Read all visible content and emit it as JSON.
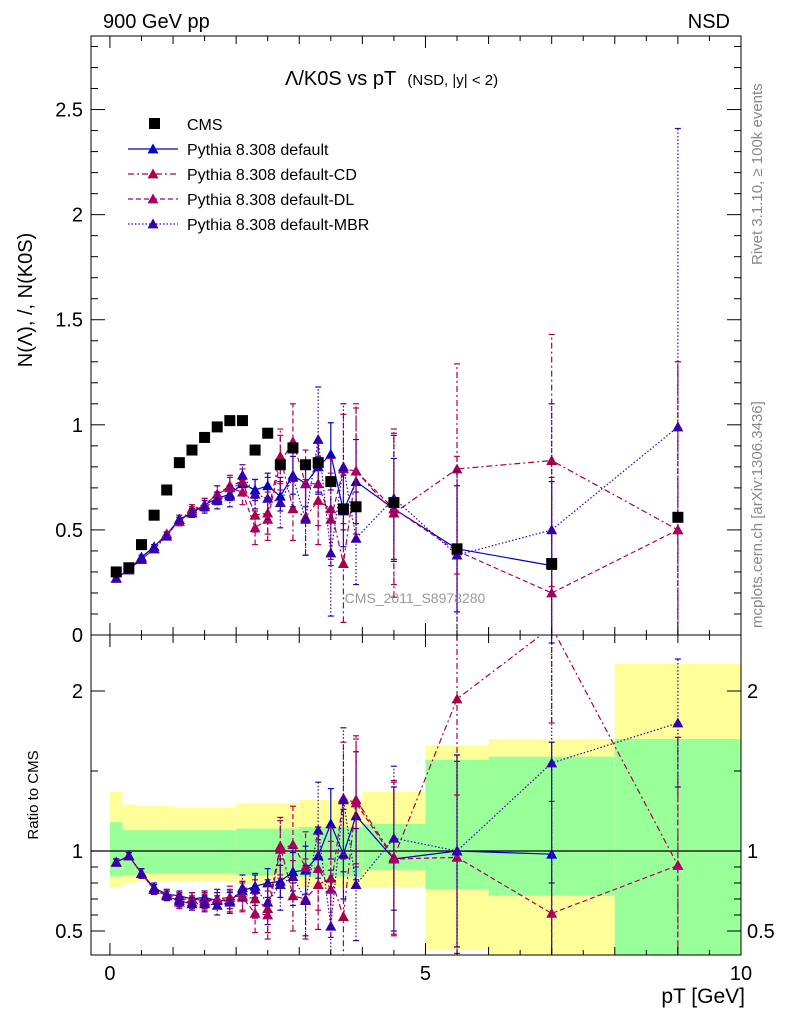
{
  "header": {
    "left": "900 GeV pp",
    "right": "NSD"
  },
  "side_label_top": "Rivet 3.1.10, ≥ 100k events",
  "side_label_bottom": "mcplots.cern.ch [arXiv:1306.3436]",
  "analysis_id": "CMS_2011_S8978280",
  "colors": {
    "cms": "#000000",
    "default": "#0000cc",
    "cd": "#aa0044",
    "dl": "#aa0066",
    "mbr": "#3300aa",
    "band_inner": "#99ff99",
    "band_outer": "#ffff99"
  },
  "chart_data": [
    {
      "type": "scatter",
      "title": "Λ/K0S vs pT",
      "title_suffix": "(NSD, |y| < 2)",
      "xlabel": "pT [GeV]",
      "ylabel": "N(Λ), /, N(K0S)",
      "xlim": [
        -0.3,
        10
      ],
      "ylim": [
        0,
        2.85
      ],
      "yticks": [
        0,
        0.5,
        1,
        1.5,
        2,
        2.5
      ],
      "ytick_labels": [
        "0",
        "0.5",
        "1",
        "1.5",
        "2",
        "2.5"
      ],
      "legend_position": "top-left",
      "x": [
        0.1,
        0.3,
        0.5,
        0.7,
        0.9,
        1.1,
        1.3,
        1.5,
        1.7,
        1.9,
        2.1,
        2.3,
        2.5,
        2.7,
        2.9,
        3.1,
        3.3,
        3.5,
        3.7,
        3.9,
        4.5,
        5.5,
        7.0,
        9.0
      ],
      "series": [
        {
          "name": "CMS",
          "style": "marker",
          "values": [
            0.3,
            0.32,
            0.43,
            0.57,
            0.69,
            0.82,
            0.88,
            0.94,
            0.99,
            1.02,
            1.02,
            0.88,
            0.96,
            0.81,
            0.89,
            0.81,
            0.82,
            0.73,
            0.6,
            0.61,
            0.63,
            0.41,
            0.34,
            0.56
          ]
        },
        {
          "name": "Pythia 8.308 default",
          "style": "solid",
          "values": [
            0.27,
            0.31,
            0.37,
            0.42,
            0.48,
            0.55,
            0.58,
            0.62,
            0.65,
            0.67,
            0.72,
            0.69,
            0.71,
            0.66,
            0.76,
            0.72,
            0.8,
            0.86,
            0.59,
            0.73,
            0.6,
            0.41,
            0.33,
            null
          ],
          "err": [
            0.01,
            0.01,
            0.01,
            0.01,
            0.01,
            0.01,
            0.02,
            0.02,
            0.03,
            0.03,
            0.04,
            0.05,
            0.06,
            0.07,
            0.09,
            0.11,
            0.13,
            0.15,
            0.17,
            0.2,
            0.24,
            0.3,
            0.4,
            0
          ]
        },
        {
          "name": "Pythia 8.308 default-CD",
          "style": "dashdot",
          "values": [
            0.27,
            0.31,
            0.36,
            0.41,
            0.48,
            0.54,
            0.6,
            0.62,
            0.67,
            0.71,
            0.73,
            0.57,
            0.58,
            0.85,
            0.6,
            0.56,
            0.64,
            0.6,
            0.34,
            0.78,
            0.58,
            0.79,
            0.83,
            0.5
          ],
          "err": [
            0.01,
            0.01,
            0.01,
            0.01,
            0.01,
            0.02,
            0.02,
            0.03,
            0.04,
            0.05,
            0.06,
            0.08,
            0.1,
            0.13,
            0.15,
            0.18,
            0.21,
            0.24,
            0.28,
            0.32,
            0.4,
            0.5,
            0.6,
            0.8
          ]
        },
        {
          "name": "Pythia 8.308 default-DL",
          "style": "dashed",
          "values": [
            0.27,
            0.31,
            0.36,
            0.41,
            0.48,
            0.54,
            0.59,
            0.62,
            0.67,
            0.7,
            0.68,
            0.51,
            0.55,
            0.82,
            0.92,
            0.72,
            0.72,
            0.55,
            0.79,
            0.78,
            0.6,
            0.4,
            0.2,
            0.5
          ],
          "err": [
            0.01,
            0.01,
            0.01,
            0.01,
            0.01,
            0.02,
            0.02,
            0.03,
            0.04,
            0.05,
            0.06,
            0.08,
            0.1,
            0.13,
            0.18,
            0.16,
            0.2,
            0.22,
            0.26,
            0.3,
            0.36,
            0.45,
            0.55,
            0.8
          ]
        },
        {
          "name": "Pythia 8.308 default-MBR",
          "style": "dotted",
          "values": [
            0.27,
            0.31,
            0.36,
            0.41,
            0.47,
            0.55,
            0.58,
            0.61,
            0.64,
            0.66,
            0.76,
            0.67,
            0.65,
            0.63,
            0.75,
            0.55,
            0.93,
            0.39,
            0.8,
            0.46,
            0.65,
            0.38,
            0.5,
            0.99
          ],
          "err": [
            0.01,
            0.01,
            0.01,
            0.01,
            0.01,
            0.02,
            0.02,
            0.03,
            0.04,
            0.05,
            0.05,
            0.07,
            0.1,
            0.12,
            0.14,
            0.17,
            0.25,
            0.3,
            0.3,
            0.22,
            0.3,
            0.4,
            0.6,
            1.42
          ]
        }
      ]
    },
    {
      "type": "scatter",
      "xlabel": "pT [GeV]",
      "ylabel": "Ratio to CMS",
      "xlim": [
        -0.3,
        10
      ],
      "ylim": [
        0.35,
        2.35
      ],
      "yticks": [
        0.5,
        1,
        2
      ],
      "ytick_labels": [
        "0.5",
        "1",
        "2"
      ],
      "xticks": [
        0,
        5,
        10
      ],
      "xtick_labels": [
        "0",
        "5",
        "10"
      ],
      "reference_line": 1,
      "band_bins": [
        {
          "x0": 0.0,
          "x1": 0.2,
          "inner": [
            0.84,
            1.18
          ],
          "outer": [
            0.77,
            1.37
          ]
        },
        {
          "x0": 0.2,
          "x1": 0.4,
          "inner": [
            0.85,
            1.13
          ],
          "outer": [
            0.8,
            1.29
          ]
        },
        {
          "x0": 0.4,
          "x1": 1.0,
          "inner": [
            0.86,
            1.13
          ],
          "outer": [
            0.81,
            1.28
          ]
        },
        {
          "x0": 1.0,
          "x1": 2.0,
          "inner": [
            0.86,
            1.13
          ],
          "outer": [
            0.81,
            1.27
          ]
        },
        {
          "x0": 2.0,
          "x1": 3.0,
          "inner": [
            0.85,
            1.14
          ],
          "outer": [
            0.79,
            1.3
          ]
        },
        {
          "x0": 3.0,
          "x1": 4.0,
          "inner": [
            0.84,
            1.15
          ],
          "outer": [
            0.77,
            1.32
          ]
        },
        {
          "x0": 4.0,
          "x1": 5.0,
          "inner": [
            0.88,
            1.17
          ],
          "outer": [
            0.77,
            1.37
          ]
        },
        {
          "x0": 5.0,
          "x1": 6.0,
          "inner": [
            0.76,
            1.57
          ],
          "outer": [
            0.38,
            1.66
          ]
        },
        {
          "x0": 6.0,
          "x1": 8.0,
          "inner": [
            0.72,
            1.59
          ],
          "outer": [
            0.35,
            1.7
          ]
        },
        {
          "x0": 8.0,
          "x1": 10.0,
          "inner": [
            0.35,
            1.7
          ],
          "outer": [
            0.35,
            2.17
          ]
        }
      ],
      "x": [
        0.1,
        0.3,
        0.5,
        0.7,
        0.9,
        1.1,
        1.3,
        1.5,
        1.7,
        1.9,
        2.1,
        2.3,
        2.5,
        2.7,
        2.9,
        3.1,
        3.3,
        3.5,
        3.7,
        3.9,
        4.5,
        5.5,
        7.0,
        9.0
      ],
      "series": [
        {
          "name": "Pythia 8.308 default",
          "style": "solid",
          "values": [
            0.93,
            0.97,
            0.86,
            0.77,
            0.73,
            0.72,
            0.7,
            0.71,
            0.69,
            0.69,
            0.75,
            0.78,
            0.8,
            0.81,
            0.87,
            0.88,
            0.97,
            1.17,
            0.98,
            1.22,
            0.95,
            1.0,
            0.98,
            null
          ],
          "err": [
            0.02,
            0.02,
            0.03,
            0.03,
            0.03,
            0.03,
            0.04,
            0.04,
            0.05,
            0.05,
            0.06,
            0.07,
            0.09,
            0.1,
            0.12,
            0.15,
            0.18,
            0.22,
            0.28,
            0.4,
            0.45,
            0.6,
            0.7,
            0
          ]
        },
        {
          "name": "Pythia 8.308 default-CD",
          "style": "dashdot",
          "values": [
            0.93,
            0.97,
            0.86,
            0.76,
            0.73,
            0.7,
            0.7,
            0.69,
            0.7,
            0.71,
            0.72,
            0.7,
            0.64,
            1.03,
            0.72,
            0.7,
            0.79,
            0.83,
            0.59,
            1.32,
            0.96,
            1.95,
            2.4,
            0.91
          ],
          "err": [
            0.02,
            0.02,
            0.03,
            0.03,
            0.03,
            0.04,
            0.04,
            0.05,
            0.06,
            0.07,
            0.09,
            0.12,
            0.15,
            0.18,
            0.22,
            0.25,
            0.28,
            0.32,
            0.36,
            0.4,
            0.48,
            0.6,
            0.6,
            0.8
          ]
        },
        {
          "name": "Pythia 8.308 default-DL",
          "style": "dashed",
          "values": [
            0.93,
            0.97,
            0.86,
            0.76,
            0.72,
            0.68,
            0.68,
            0.68,
            0.7,
            0.69,
            0.71,
            0.61,
            0.6,
            1.01,
            1.04,
            0.9,
            0.89,
            0.76,
            1.33,
            1.3,
            0.95,
            0.96,
            0.61,
            0.91
          ],
          "err": [
            0.02,
            0.02,
            0.03,
            0.03,
            0.03,
            0.04,
            0.04,
            0.05,
            0.06,
            0.07,
            0.09,
            0.12,
            0.15,
            0.18,
            0.24,
            0.22,
            0.26,
            0.3,
            0.35,
            0.4,
            0.48,
            0.6,
            0.7,
            0.8
          ]
        },
        {
          "name": "Pythia 8.308 default-MBR",
          "style": "dotted",
          "values": [
            0.93,
            0.97,
            0.86,
            0.76,
            0.72,
            0.69,
            0.67,
            0.67,
            0.66,
            0.68,
            0.77,
            0.76,
            0.68,
            0.79,
            0.84,
            0.69,
            1.13,
            0.53,
            1.32,
            0.79,
            1.08,
            1.0,
            1.55,
            1.8
          ],
          "err": [
            0.02,
            0.02,
            0.03,
            0.03,
            0.03,
            0.04,
            0.04,
            0.05,
            0.06,
            0.07,
            0.08,
            0.1,
            0.14,
            0.16,
            0.18,
            0.22,
            0.3,
            0.35,
            0.45,
            0.35,
            0.45,
            0.6,
            0.75,
            0.4
          ]
        }
      ]
    }
  ]
}
